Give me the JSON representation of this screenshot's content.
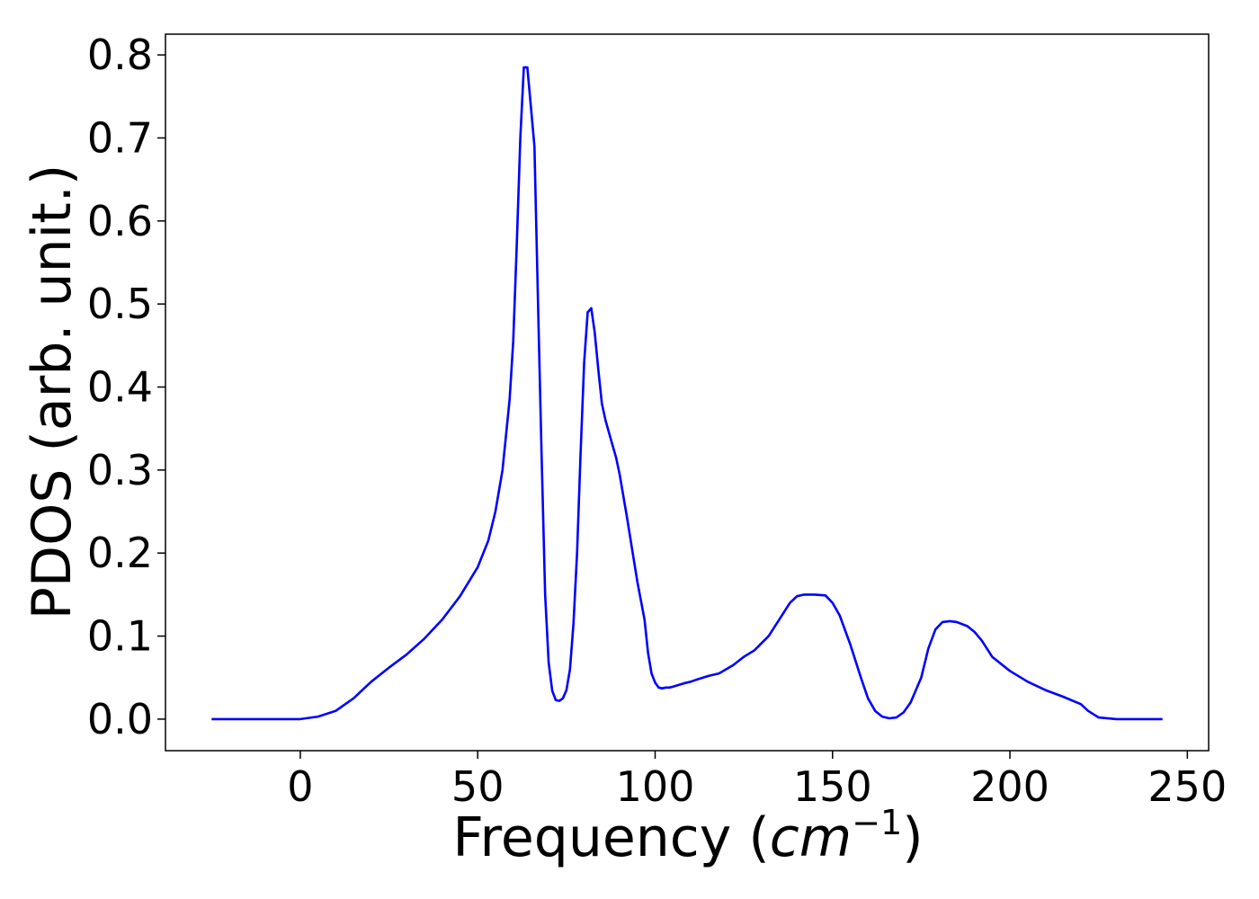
{
  "chart_data": {
    "type": "line",
    "title": "",
    "xlabel": "Frequency (cm⁻¹)",
    "xlabel_parts": {
      "prefix": "Frequency (",
      "base": "cm",
      "exponent": "−1",
      "suffix": ")"
    },
    "ylabel": "PDOS (arb. unit.)",
    "xlim": [
      -38,
      256
    ],
    "ylim": [
      -0.038,
      0.825
    ],
    "x_ticks": [
      0,
      50,
      100,
      150,
      200,
      250
    ],
    "y_ticks": [
      0.0,
      0.1,
      0.2,
      0.3,
      0.4,
      0.5,
      0.6,
      0.7,
      0.8
    ],
    "y_tick_labels": [
      "0.0",
      "0.1",
      "0.2",
      "0.3",
      "0.4",
      "0.5",
      "0.6",
      "0.7",
      "0.8"
    ],
    "grid": false,
    "legend": "none",
    "series": [
      {
        "color": "#0000ff",
        "x": [
          -25,
          -10,
          0,
          5,
          10,
          15,
          20,
          25,
          30,
          35,
          40,
          45,
          50,
          53,
          55,
          57,
          59,
          60,
          61,
          62,
          63,
          64,
          66,
          67,
          68,
          69,
          70,
          71,
          72,
          73,
          74,
          75,
          76,
          77,
          78,
          79,
          80,
          81,
          82,
          83,
          84,
          85,
          86,
          87,
          88,
          89,
          90,
          92,
          95,
          97,
          98,
          99,
          100,
          101,
          102,
          103,
          104,
          105,
          108,
          110,
          112,
          115,
          118,
          120,
          122,
          125,
          128,
          132,
          135,
          138,
          140,
          142,
          145,
          148,
          150,
          152,
          155,
          158,
          160,
          162,
          164,
          166,
          168,
          170,
          172,
          175,
          177,
          179,
          181,
          183,
          185,
          188,
          190,
          192,
          195,
          200,
          205,
          210,
          215,
          220,
          222,
          225,
          230,
          243
        ],
        "y": [
          0.0,
          0.0,
          0.0,
          0.003,
          0.01,
          0.025,
          0.045,
          0.062,
          0.078,
          0.097,
          0.12,
          0.148,
          0.183,
          0.215,
          0.25,
          0.3,
          0.385,
          0.455,
          0.57,
          0.7,
          0.785,
          0.785,
          0.69,
          0.5,
          0.32,
          0.15,
          0.068,
          0.034,
          0.023,
          0.022,
          0.025,
          0.035,
          0.06,
          0.115,
          0.2,
          0.32,
          0.43,
          0.49,
          0.495,
          0.465,
          0.42,
          0.38,
          0.36,
          0.345,
          0.33,
          0.315,
          0.295,
          0.245,
          0.165,
          0.12,
          0.08,
          0.055,
          0.044,
          0.038,
          0.037,
          0.038,
          0.038,
          0.039,
          0.043,
          0.045,
          0.048,
          0.052,
          0.055,
          0.06,
          0.065,
          0.075,
          0.083,
          0.1,
          0.12,
          0.14,
          0.148,
          0.15,
          0.15,
          0.149,
          0.14,
          0.125,
          0.09,
          0.05,
          0.025,
          0.01,
          0.003,
          0.001,
          0.002,
          0.008,
          0.02,
          0.05,
          0.085,
          0.108,
          0.117,
          0.118,
          0.117,
          0.112,
          0.105,
          0.095,
          0.075,
          0.058,
          0.045,
          0.035,
          0.027,
          0.018,
          0.01,
          0.002,
          0.0,
          0.0
        ]
      }
    ]
  }
}
